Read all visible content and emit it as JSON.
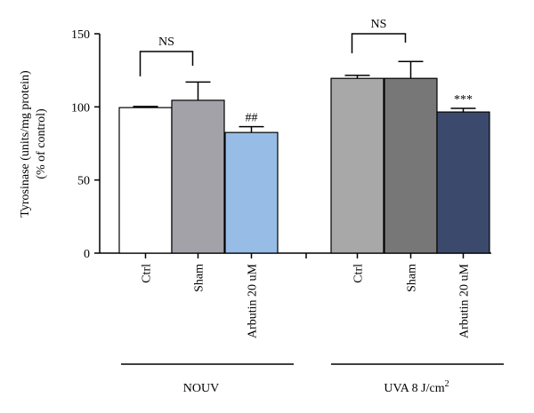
{
  "chart_data": {
    "type": "bar",
    "ylabel_line1": "Tyrosinase (units/mg protein)",
    "ylabel_line2": "(% of control)",
    "ylim": [
      0,
      150
    ],
    "yticks": [
      "0",
      "50",
      "100",
      "150"
    ],
    "grid": false,
    "groups": [
      {
        "label": "NOUV",
        "superscript": "",
        "ns_label": "NS",
        "bars": [
          {
            "category": "Ctrl",
            "value": 99.5,
            "error": 0.8,
            "color": "#ffffff",
            "annotation": ""
          },
          {
            "category": "Sham",
            "value": 104.5,
            "error": 12.5,
            "color": "#a3a2a8",
            "annotation": ""
          },
          {
            "category": "Arbutin 20 uM",
            "value": 82.5,
            "error": 4.0,
            "color": "#97bde6",
            "annotation": "##"
          }
        ]
      },
      {
        "label": "UVA 8 J/cm",
        "superscript": "2",
        "ns_label": "NS",
        "bars": [
          {
            "category": "Ctrl",
            "value": 119.5,
            "error": 2.0,
            "color": "#a8a8a8",
            "annotation": ""
          },
          {
            "category": "Sham",
            "value": 119.5,
            "error": 11.5,
            "color": "#777777",
            "annotation": ""
          },
          {
            "category": "Arbutin 20 uM",
            "value": 96.5,
            "error": 2.5,
            "color": "#3b4a6c",
            "annotation": "***"
          }
        ]
      }
    ]
  }
}
